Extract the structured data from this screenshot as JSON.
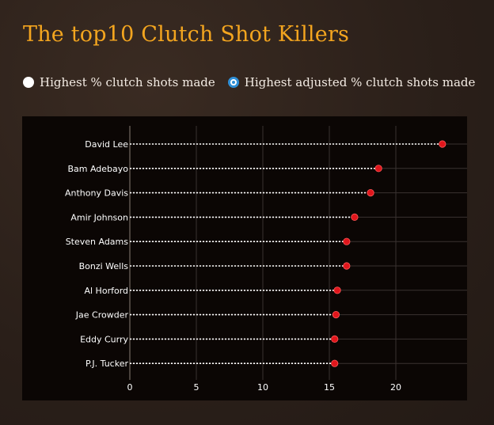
{
  "page": {
    "title": "The top10 Clutch Shot Killers"
  },
  "controls": {
    "options": [
      {
        "label": "Highest % clutch shots made",
        "selected": false
      },
      {
        "label": "Highest adjusted % clutch shots made",
        "selected": true
      }
    ]
  },
  "colors": {
    "title": "#f3a51f",
    "marker": "#e0161c",
    "stem": "#ffffff",
    "radio_selected": "#2f8fd6"
  },
  "chart_data": {
    "type": "scatter",
    "style": "lollipop",
    "title": "",
    "xlabel": "",
    "ylabel": "",
    "xlim": [
      0,
      25
    ],
    "x_ticks": [
      0,
      5,
      10,
      15,
      20
    ],
    "grid": true,
    "categories": [
      "David Lee",
      "Bam Adebayo",
      "Anthony Davis",
      "Amir Johnson",
      "Steven Adams",
      "Bonzi Wells",
      "Al Horford",
      "Jae Crowder",
      "Eddy Curry",
      "P.J. Tucker"
    ],
    "values": [
      23.5,
      18.7,
      18.1,
      16.9,
      16.3,
      16.3,
      15.6,
      15.5,
      15.4,
      15.4
    ]
  }
}
